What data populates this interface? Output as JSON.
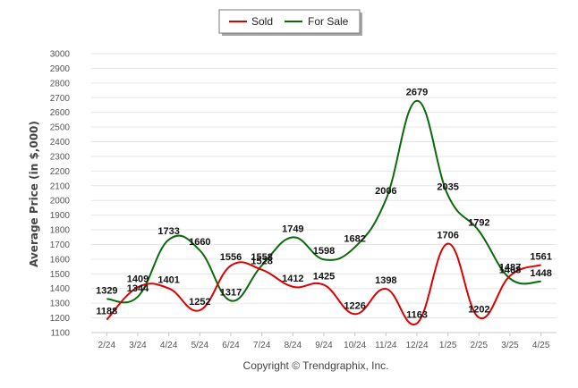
{
  "chart_data": {
    "type": "line",
    "categories": [
      "2/24",
      "3/24",
      "4/24",
      "5/24",
      "6/24",
      "7/24",
      "8/24",
      "9/24",
      "10/24",
      "11/24",
      "12/24",
      "1/25",
      "2/25",
      "3/25",
      "4/25"
    ],
    "series": [
      {
        "name": "Sold",
        "color": "#dd0000",
        "values": [
          1188,
          1409,
          1401,
          1252,
          1556,
          1528,
          1412,
          1425,
          1226,
          1398,
          1163,
          1706,
          1202,
          1487,
          1561
        ]
      },
      {
        "name": "For Sale",
        "color": "#0a6a0a",
        "values": [
          1329,
          1344,
          1733,
          1660,
          1317,
          1558,
          1749,
          1598,
          1682,
          2006,
          2679,
          2035,
          1792,
          1468,
          1448
        ]
      }
    ],
    "ylabel": "Average Price (in $,000)",
    "xlabel": "",
    "ylim": [
      1100,
      3000
    ],
    "yticks": [
      1100,
      1200,
      1300,
      1400,
      1500,
      1600,
      1700,
      1800,
      1900,
      2000,
      2100,
      2200,
      2300,
      2400,
      2500,
      2600,
      2700,
      2800,
      2900,
      3000
    ],
    "legend_position": "top-center",
    "grid": true,
    "smooth": true,
    "footer": "Copyright © Trendgraphix, Inc."
  }
}
